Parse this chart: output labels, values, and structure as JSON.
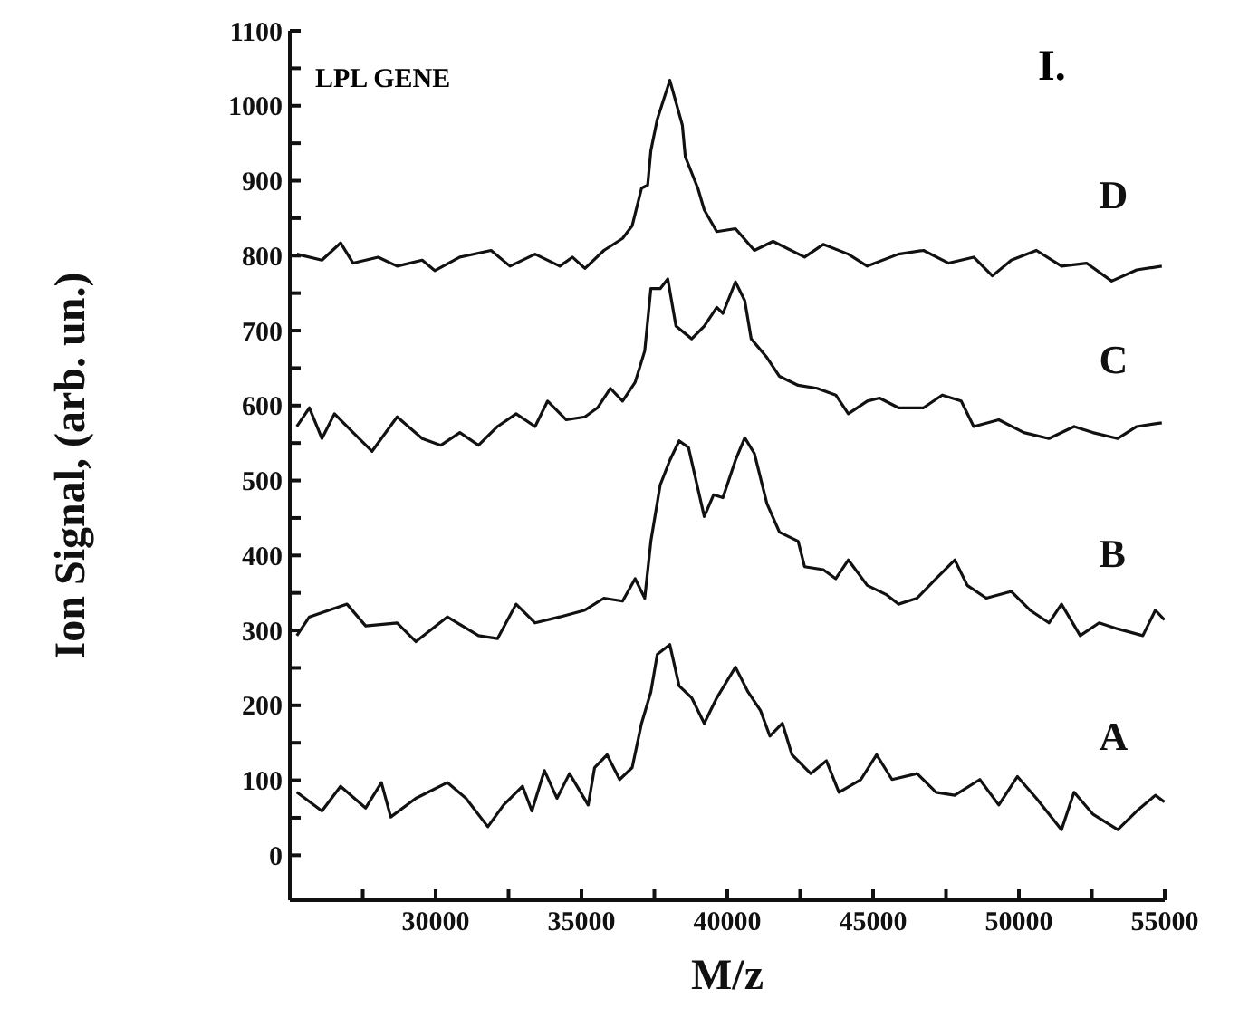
{
  "chart_data": {
    "type": "line",
    "xlabel": "M/z",
    "ylabel": "Ion Signal, (arb. un.)",
    "annotations": [
      "LPL GENE",
      "I."
    ],
    "xlim": [
      25000,
      55000
    ],
    "xticks": [
      {
        "value": 27500,
        "label": null
      },
      30000,
      {
        "value": 32500,
        "label": null
      },
      35000,
      {
        "value": 37500,
        "label": null
      },
      40000,
      {
        "value": 42500,
        "label": null
      },
      45000,
      {
        "value": 47500,
        "label": null
      },
      50000,
      {
        "value": 52500,
        "label": null
      },
      55000
    ],
    "ylim": [
      -60,
      1100
    ],
    "yticks": [
      0,
      {
        "value": 50,
        "label": null
      },
      100,
      {
        "value": 150,
        "label": null
      },
      200,
      {
        "value": 250,
        "label": null
      },
      300,
      {
        "value": 350,
        "label": null
      },
      400,
      {
        "value": 450,
        "label": null
      },
      500,
      {
        "value": 550,
        "label": null
      },
      600,
      {
        "value": 650,
        "label": null
      },
      700,
      {
        "value": 750,
        "label": null
      },
      800,
      {
        "value": 850,
        "label": null
      },
      900,
      {
        "value": 950,
        "label": null
      },
      1000,
      {
        "value": 1050,
        "label": null
      },
      1100
    ],
    "grid": false,
    "legend": false,
    "marker": "none",
    "line_style": "solid",
    "series": [
      {
        "name": "A",
        "color": "#111111",
        "x": [
          25240,
          26100,
          26740,
          27600,
          28140,
          28460,
          29320,
          30400,
          31040,
          31790,
          32330,
          32980,
          33300,
          33730,
          34160,
          34590,
          35230,
          35450,
          35880,
          36310,
          36740,
          37060,
          37380,
          37600,
          38030,
          38350,
          38780,
          39210,
          39640,
          40280,
          40710,
          41140,
          41460,
          41890,
          42220,
          42860,
          43400,
          43830,
          44580,
          45120,
          45650,
          46510,
          47160,
          47800,
          48660,
          49310,
          49950,
          50600,
          51460,
          51890,
          52530,
          53390,
          54040,
          54680,
          54990
        ],
        "values": [
          84,
          59,
          92,
          63,
          97,
          51,
          76,
          97,
          76,
          38,
          67,
          92,
          59,
          113,
          76,
          109,
          67,
          117,
          134,
          101,
          117,
          176,
          218,
          268,
          281,
          226,
          210,
          176,
          210,
          251,
          218,
          193,
          159,
          176,
          134,
          109,
          126,
          84,
          101,
          134,
          101,
          109,
          84,
          80,
          101,
          67,
          105,
          76,
          34,
          84,
          55,
          34,
          59,
          80,
          71
        ]
      },
      {
        "name": "B",
        "color": "#111111",
        "x": [
          25240,
          25670,
          26960,
          27600,
          28680,
          29320,
          30400,
          31470,
          32120,
          32760,
          33410,
          34260,
          35120,
          35770,
          36410,
          36840,
          37170,
          37380,
          37700,
          38030,
          38350,
          38670,
          39210,
          39530,
          39850,
          40280,
          40600,
          40930,
          41360,
          41790,
          42430,
          42650,
          43290,
          43720,
          44150,
          44800,
          45440,
          45870,
          46510,
          47160,
          47800,
          48230,
          48880,
          49740,
          50380,
          51030,
          51460,
          52100,
          52750,
          53390,
          54250,
          54680,
          54990
        ],
        "values": [
          293,
          318,
          335,
          306,
          310,
          285,
          318,
          293,
          289,
          335,
          310,
          318,
          327,
          343,
          339,
          369,
          343,
          419,
          494,
          527,
          553,
          544,
          452,
          481,
          477,
          527,
          557,
          536,
          469,
          431,
          419,
          385,
          381,
          369,
          394,
          360,
          348,
          335,
          343,
          369,
          394,
          360,
          343,
          352,
          327,
          310,
          335,
          293,
          310,
          302,
          293,
          327,
          314
        ]
      },
      {
        "name": "C",
        "color": "#111111",
        "x": [
          25240,
          25670,
          26100,
          26530,
          27170,
          27820,
          28680,
          29540,
          30180,
          30830,
          31470,
          32120,
          32760,
          33410,
          33840,
          34480,
          35120,
          35550,
          35990,
          36410,
          36840,
          37170,
          37380,
          37700,
          37960,
          38240,
          38780,
          39210,
          39640,
          39850,
          40280,
          40600,
          40820,
          41360,
          41790,
          42430,
          43080,
          43720,
          44150,
          44800,
          45220,
          45870,
          46730,
          47370,
          48020,
          48450,
          49310,
          50170,
          51030,
          51890,
          52530,
          53390,
          54040,
          54900
        ],
        "values": [
          572,
          597,
          556,
          589,
          564,
          539,
          585,
          556,
          547,
          564,
          547,
          572,
          589,
          572,
          606,
          581,
          585,
          597,
          623,
          606,
          631,
          673,
          756,
          756,
          769,
          706,
          689,
          706,
          731,
          723,
          765,
          740,
          689,
          664,
          639,
          627,
          623,
          614,
          589,
          606,
          610,
          597,
          597,
          614,
          606,
          572,
          581,
          564,
          556,
          572,
          564,
          556,
          572,
          577
        ]
      },
      {
        "name": "D",
        "color": "#111111",
        "x": [
          25240,
          26100,
          26740,
          27170,
          28030,
          28680,
          29540,
          29970,
          30830,
          31900,
          32550,
          33410,
          34260,
          34690,
          35120,
          35770,
          36410,
          36740,
          37060,
          37270,
          37380,
          37600,
          38030,
          38460,
          38560,
          38990,
          39210,
          39640,
          40280,
          40930,
          41570,
          42650,
          43290,
          44150,
          44800,
          45870,
          46730,
          47590,
          48450,
          49090,
          49740,
          50600,
          51460,
          52320,
          53180,
          54040,
          54900
        ],
        "values": [
          802,
          794,
          817,
          790,
          798,
          786,
          794,
          780,
          798,
          807,
          786,
          802,
          786,
          798,
          783,
          807,
          823,
          840,
          890,
          894,
          940,
          982,
          1034,
          974,
          932,
          890,
          861,
          832,
          836,
          807,
          819,
          798,
          815,
          802,
          786,
          802,
          807,
          790,
          798,
          773,
          794,
          807,
          786,
          790,
          766,
          781,
          786
        ]
      }
    ]
  }
}
